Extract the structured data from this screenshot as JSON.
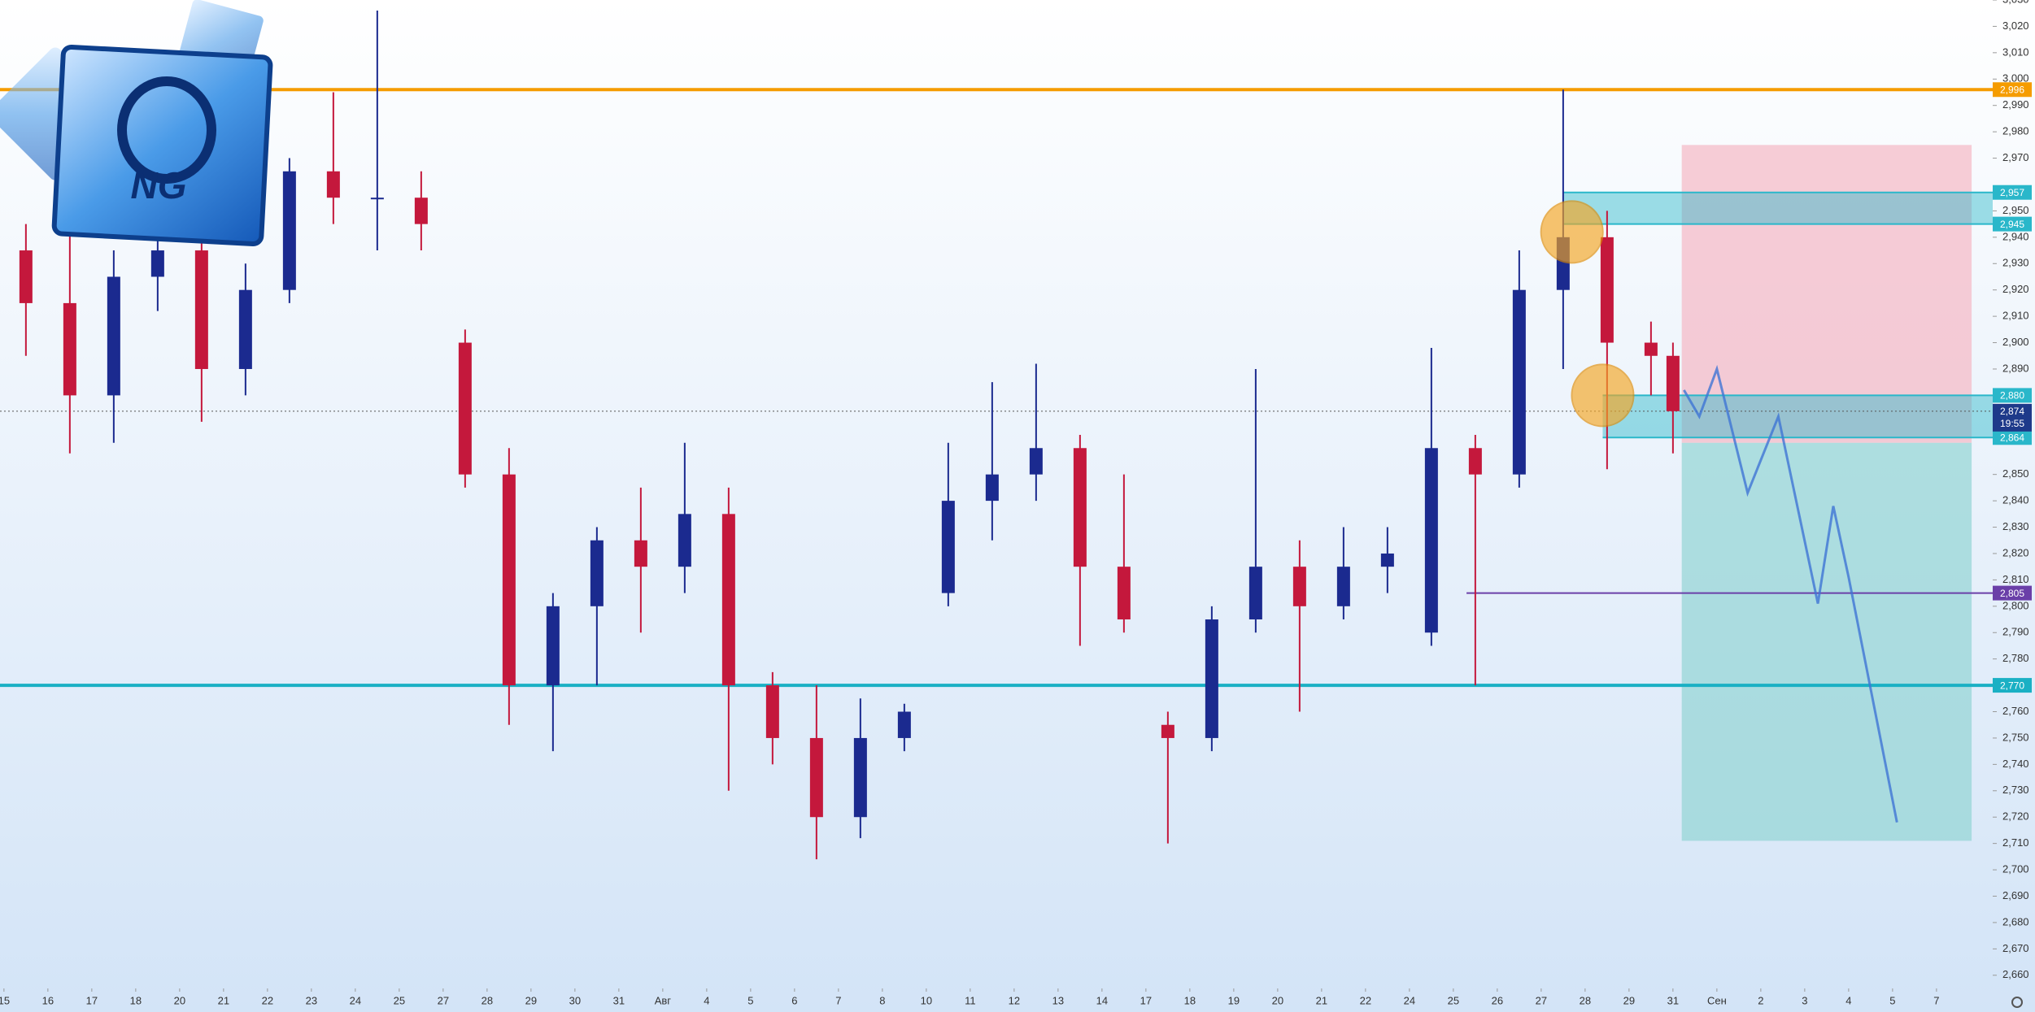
{
  "logo": "NG",
  "chart_data": {
    "type": "candlestick",
    "xlim": [
      -0.09,
      45.28
    ],
    "ylim": [
      2655,
      3030
    ],
    "xticks": [
      {
        "value": 0,
        "label": "15"
      },
      {
        "value": 1,
        "label": "16"
      },
      {
        "value": 2,
        "label": "17"
      },
      {
        "value": 3,
        "label": "18"
      },
      {
        "value": 4,
        "label": "20"
      },
      {
        "value": 5,
        "label": "21"
      },
      {
        "value": 6,
        "label": "22"
      },
      {
        "value": 7,
        "label": "23"
      },
      {
        "value": 8,
        "label": "24"
      },
      {
        "value": 9,
        "label": "25"
      },
      {
        "value": 10,
        "label": "27"
      },
      {
        "value": 11,
        "label": "28"
      },
      {
        "value": 12,
        "label": "29"
      },
      {
        "value": 13,
        "label": "30"
      },
      {
        "value": 14,
        "label": "31"
      },
      {
        "value": 15,
        "label": "Авг"
      },
      {
        "value": 16,
        "label": "4"
      },
      {
        "value": 17,
        "label": "5"
      },
      {
        "value": 18,
        "label": "6"
      },
      {
        "value": 19,
        "label": "7"
      },
      {
        "value": 20,
        "label": "8"
      },
      {
        "value": 21,
        "label": "10"
      },
      {
        "value": 22,
        "label": "11"
      },
      {
        "value": 23,
        "label": "12"
      },
      {
        "value": 24,
        "label": "13"
      },
      {
        "value": 25,
        "label": "14"
      },
      {
        "value": 26,
        "label": "17"
      },
      {
        "value": 27,
        "label": "18"
      },
      {
        "value": 28,
        "label": "19"
      },
      {
        "value": 29,
        "label": "20"
      },
      {
        "value": 30,
        "label": "21"
      },
      {
        "value": 31,
        "label": "22"
      },
      {
        "value": 32,
        "label": "24"
      },
      {
        "value": 33,
        "label": "25"
      },
      {
        "value": 34,
        "label": "26"
      },
      {
        "value": 35,
        "label": "27"
      },
      {
        "value": 36,
        "label": "28"
      },
      {
        "value": 37,
        "label": "29"
      },
      {
        "value": 38,
        "label": "31"
      },
      {
        "value": 39,
        "label": "Сен"
      },
      {
        "value": 40,
        "label": "2"
      },
      {
        "value": 41,
        "label": "3"
      },
      {
        "value": 42,
        "label": "4"
      },
      {
        "value": 43,
        "label": "5"
      },
      {
        "value": 44,
        "label": "7"
      }
    ],
    "yticks": [
      {
        "value": 2660,
        "label": "2,660"
      },
      {
        "value": 2670,
        "label": "2,670"
      },
      {
        "value": 2680,
        "label": "2,680"
      },
      {
        "value": 2690,
        "label": "2,690"
      },
      {
        "value": 2700,
        "label": "2,700"
      },
      {
        "value": 2710,
        "label": "2,710"
      },
      {
        "value": 2720,
        "label": "2,720"
      },
      {
        "value": 2730,
        "label": "2,730"
      },
      {
        "value": 2740,
        "label": "2,740"
      },
      {
        "value": 2750,
        "label": "2,750"
      },
      {
        "value": 2760,
        "label": "2,760"
      },
      {
        "value": 2780,
        "label": "2,780"
      },
      {
        "value": 2790,
        "label": "2,790"
      },
      {
        "value": 2800,
        "label": "2,800"
      },
      {
        "value": 2810,
        "label": "2,810"
      },
      {
        "value": 2820,
        "label": "2,820"
      },
      {
        "value": 2830,
        "label": "2,830"
      },
      {
        "value": 2840,
        "label": "2,840"
      },
      {
        "value": 2850,
        "label": "2,850"
      },
      {
        "value": 2890,
        "label": "2,890"
      },
      {
        "value": 2900,
        "label": "2,900"
      },
      {
        "value": 2910,
        "label": "2,910"
      },
      {
        "value": 2920,
        "label": "2,920"
      },
      {
        "value": 2930,
        "label": "2,930"
      },
      {
        "value": 2940,
        "label": "2,940"
      },
      {
        "value": 2950,
        "label": "2,950"
      },
      {
        "value": 2970,
        "label": "2,970"
      },
      {
        "value": 2980,
        "label": "2,980"
      },
      {
        "value": 2990,
        "label": "2,990"
      },
      {
        "value": 3000,
        "label": "3,000"
      },
      {
        "value": 3010,
        "label": "3,010"
      },
      {
        "value": 3020,
        "label": "3,020"
      },
      {
        "value": 3030,
        "label": "3,030"
      }
    ],
    "up_color": "#1b2a8f",
    "down_color": "#c4183c",
    "x": [
      0.5,
      1.5,
      2.5,
      3.5,
      4.5,
      5.5,
      6.5,
      7.5,
      8.5,
      9.5,
      10.5,
      11.5,
      12.5,
      13.5,
      14.5,
      15.5,
      16.5,
      17.5,
      18.5,
      19.5,
      20.5,
      21.5,
      22.5,
      23.5,
      24.5,
      25.5,
      26.5,
      27.5,
      28.5,
      29.5,
      30.5,
      31.5,
      32.5,
      33.5,
      34.5,
      35.5,
      36.5,
      37.5,
      38.0
    ],
    "open": [
      2935,
      2915,
      2880,
      2925,
      2935,
      2890,
      2920,
      2965,
      2955,
      2955,
      2900,
      2850,
      2770,
      2800,
      2825,
      2815,
      2835,
      2770,
      2750,
      2720,
      2750,
      2805,
      2840,
      2850,
      2860,
      2815,
      2755,
      2750,
      2795,
      2815,
      2800,
      2815,
      2790,
      2860,
      2850,
      2920,
      2940,
      2900,
      2895
    ],
    "high": [
      2945,
      2946,
      2935,
      2942,
      2945,
      2930,
      2970,
      2995,
      3026,
      2965,
      2905,
      2860,
      2805,
      2830,
      2845,
      2862,
      2845,
      2775,
      2770,
      2765,
      2763,
      2862,
      2885,
      2892,
      2865,
      2850,
      2760,
      2800,
      2890,
      2825,
      2830,
      2830,
      2898,
      2865,
      2935,
      2996,
      2950,
      2908,
      2900
    ],
    "low": [
      2895,
      2858,
      2862,
      2912,
      2870,
      2880,
      2915,
      2945,
      2935,
      2935,
      2845,
      2755,
      2745,
      2770,
      2790,
      2805,
      2730,
      2740,
      2704,
      2712,
      2745,
      2800,
      2825,
      2840,
      2785,
      2790,
      2710,
      2745,
      2790,
      2760,
      2795,
      2805,
      2785,
      2770,
      2845,
      2890,
      2852,
      2880,
      2858
    ],
    "close": [
      2915,
      2880,
      2925,
      2935,
      2890,
      2920,
      2965,
      2955,
      2955,
      2945,
      2850,
      2770,
      2800,
      2825,
      2815,
      2835,
      2770,
      2750,
      2720,
      2750,
      2760,
      2840,
      2850,
      2860,
      2815,
      2795,
      2750,
      2795,
      2815,
      2800,
      2815,
      2820,
      2860,
      2850,
      2920,
      2940,
      2900,
      2895,
      2874
    ],
    "position": {
      "stop": 2975,
      "entry": 2862,
      "target": 2711,
      "from": 38.2,
      "to": 44.8,
      "stop_color": "#f5b8c4",
      "target_color": "#93d4d4"
    },
    "zones": [
      {
        "top": 2957,
        "bottom": 2945,
        "top_label": "2,957",
        "bottom_label": "2,945",
        "from": 35.5,
        "color": "#2ab7ca"
      },
      {
        "top": 2880,
        "bottom": 2864,
        "top_label": "2,880",
        "bottom_label": "2,864",
        "from": 36.4,
        "color": "#2ab7ca"
      }
    ],
    "levels": [
      {
        "value": 2996,
        "label": "2,996",
        "color": "#f59c00"
      },
      {
        "value": 2770,
        "label": "2,770",
        "color": "#1ab0c4"
      },
      {
        "value": 2805,
        "label": "2,805",
        "color": "#6a3fa8",
        "from": 33.3
      }
    ],
    "current": {
      "value": 2874,
      "label": "2,874",
      "time": "19:55",
      "color": "#1e3a8a"
    },
    "markers": [
      {
        "x": 35.7,
        "y": 2942
      },
      {
        "x": 36.4,
        "y": 2880
      }
    ],
    "marker_color": "#f5a623",
    "projection": {
      "x": [
        38.25,
        38.6,
        39.0,
        39.7,
        40.4,
        41.3,
        41.65,
        42.0,
        43.1
      ],
      "values": [
        2882,
        2872,
        2890,
        2843,
        2872,
        2801,
        2838,
        2811,
        2718
      ],
      "color": "#3f74d4"
    }
  }
}
